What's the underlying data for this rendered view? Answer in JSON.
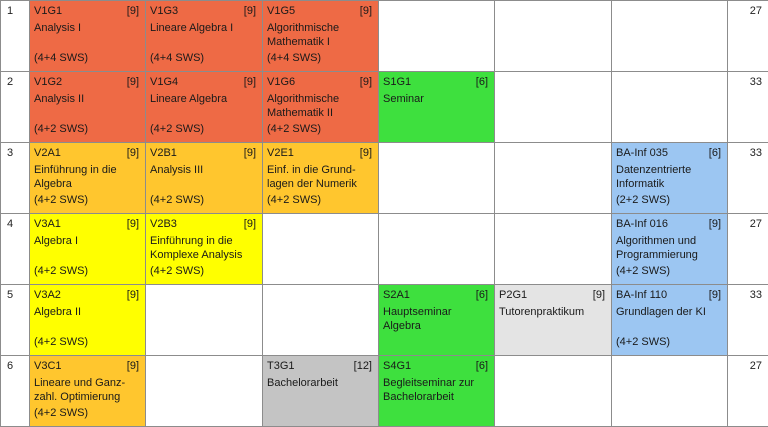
{
  "rows": [
    {
      "num": "1",
      "total": "27",
      "cells": [
        {
          "code": "V1G1",
          "cp": "[9]",
          "title": "Analysis I",
          "sws": "(4+4 SWS)",
          "color": "#ee6a45"
        },
        {
          "code": "V1G3",
          "cp": "[9]",
          "title": "Lineare Algebra I",
          "sws": "(4+4 SWS)",
          "color": "#ee6a45"
        },
        {
          "code": "V1G5",
          "cp": "[9]",
          "title": "Algorithmische Mathematik I",
          "sws": "(4+4 SWS)",
          "color": "#ee6a45"
        },
        null,
        null,
        null
      ]
    },
    {
      "num": "2",
      "total": "33",
      "cells": [
        {
          "code": "V1G2",
          "cp": "[9]",
          "title": "Analysis II",
          "sws": "(4+2 SWS)",
          "color": "#ee6a45"
        },
        {
          "code": "V1G4",
          "cp": "[9]",
          "title": "Lineare Algebra",
          "sws": "(4+2 SWS)",
          "color": "#ee6a45"
        },
        {
          "code": "V1G6",
          "cp": "[9]",
          "title": "Algorithmische Mathematik II",
          "sws": "(4+2 SWS)",
          "color": "#ee6a45"
        },
        {
          "code": "S1G1",
          "cp": "[6]",
          "title": "Seminar",
          "sws": "",
          "color": "#3ee03e"
        },
        null,
        null
      ]
    },
    {
      "num": "3",
      "total": "33",
      "cells": [
        {
          "code": "V2A1",
          "cp": "[9]",
          "title": "Einführung in die Algebra",
          "sws": "(4+2 SWS)",
          "color": "#ffc62e"
        },
        {
          "code": "V2B1",
          "cp": "[9]",
          "title": "Analysis III",
          "sws": "(4+2 SWS)",
          "color": "#ffc62e"
        },
        {
          "code": "V2E1",
          "cp": "[9]",
          "title": "Einf. in die Grund-lagen der Numerik",
          "sws": "(4+2 SWS)",
          "color": "#ffc62e"
        },
        null,
        null,
        {
          "code": "BA-Inf 035",
          "cp": "[6]",
          "title": "Datenzentrierte Informatik",
          "sws": "(2+2 SWS)",
          "color": "#9cc6f2"
        }
      ]
    },
    {
      "num": "4",
      "total": "27",
      "cells": [
        {
          "code": "V3A1",
          "cp": "[9]",
          "title": "Algebra I",
          "sws": "(4+2 SWS)",
          "color": "#ffff00"
        },
        {
          "code": "V2B3",
          "cp": "[9]",
          "title": "Einführung in die Komplexe Analysis",
          "sws": "(4+2 SWS)",
          "color": "#ffff00"
        },
        null,
        null,
        null,
        {
          "code": "BA-Inf 016",
          "cp": "[9]",
          "title": "Algorithmen und Programmierung",
          "sws": "(4+2 SWS)",
          "color": "#9cc6f2"
        }
      ]
    },
    {
      "num": "5",
      "total": "33",
      "cells": [
        {
          "code": "V3A2",
          "cp": "[9]",
          "title": "Algebra II",
          "sws": "(4+2 SWS)",
          "color": "#ffff00"
        },
        null,
        null,
        {
          "code": "S2A1",
          "cp": "[6]",
          "title": "Hauptseminar Algebra",
          "sws": "",
          "color": "#3ee03e"
        },
        {
          "code": "P2G1",
          "cp": "[9]",
          "title": "Tutorenpraktikum",
          "sws": "",
          "color": "#e4e4e4"
        },
        {
          "code": "BA-Inf 110",
          "cp": "[9]",
          "title": "Grundlagen der KI",
          "sws": "(4+2 SWS)",
          "color": "#9cc6f2"
        }
      ]
    },
    {
      "num": "6",
      "total": "27",
      "cells": [
        {
          "code": "V3C1",
          "cp": "[9]",
          "title": "Lineare und Ganz-zahl. Optimierung",
          "sws": "(4+2 SWS)",
          "color": "#ffc62e"
        },
        null,
        {
          "code": "T3G1",
          "cp": "[12]",
          "title": "Bachelorarbeit",
          "sws": "",
          "color": "#c4c4c4"
        },
        {
          "code": "S4G1",
          "cp": "[6]",
          "title": "Begleitseminar zur Bachelorarbeit",
          "sws": "",
          "color": "#3ee03e"
        },
        null,
        null
      ]
    }
  ]
}
